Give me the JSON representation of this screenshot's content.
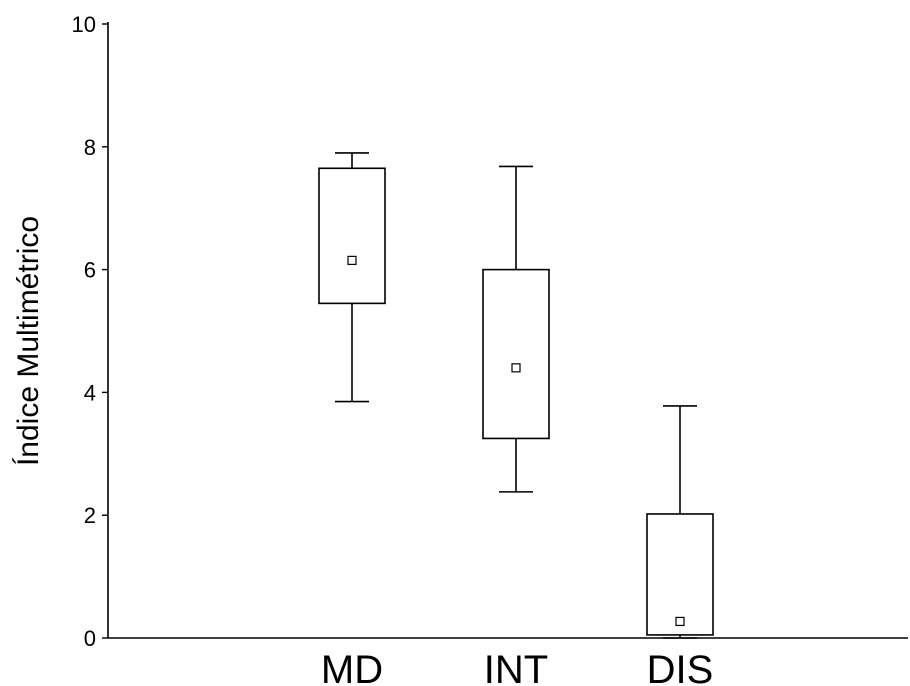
{
  "chart_data": {
    "type": "box",
    "ylabel": "Índice Multimétrico",
    "xlabel": "",
    "ylim": [
      0,
      10
    ],
    "yticks": [
      0,
      2,
      4,
      6,
      8,
      10
    ],
    "grid": false,
    "categories": [
      "MD",
      "INT",
      "DIS"
    ],
    "boxes": [
      {
        "category": "MD",
        "whisker_low": 3.85,
        "q1": 5.45,
        "q3": 7.65,
        "whisker_high": 7.9,
        "mean": 6.15
      },
      {
        "category": "INT",
        "whisker_low": 2.38,
        "q1": 3.25,
        "q3": 6.0,
        "whisker_high": 7.68,
        "mean": 4.4
      },
      {
        "category": "DIS",
        "whisker_low": 0.0,
        "q1": 0.05,
        "q3": 2.02,
        "whisker_high": 3.78,
        "mean": 0.27
      }
    ]
  }
}
